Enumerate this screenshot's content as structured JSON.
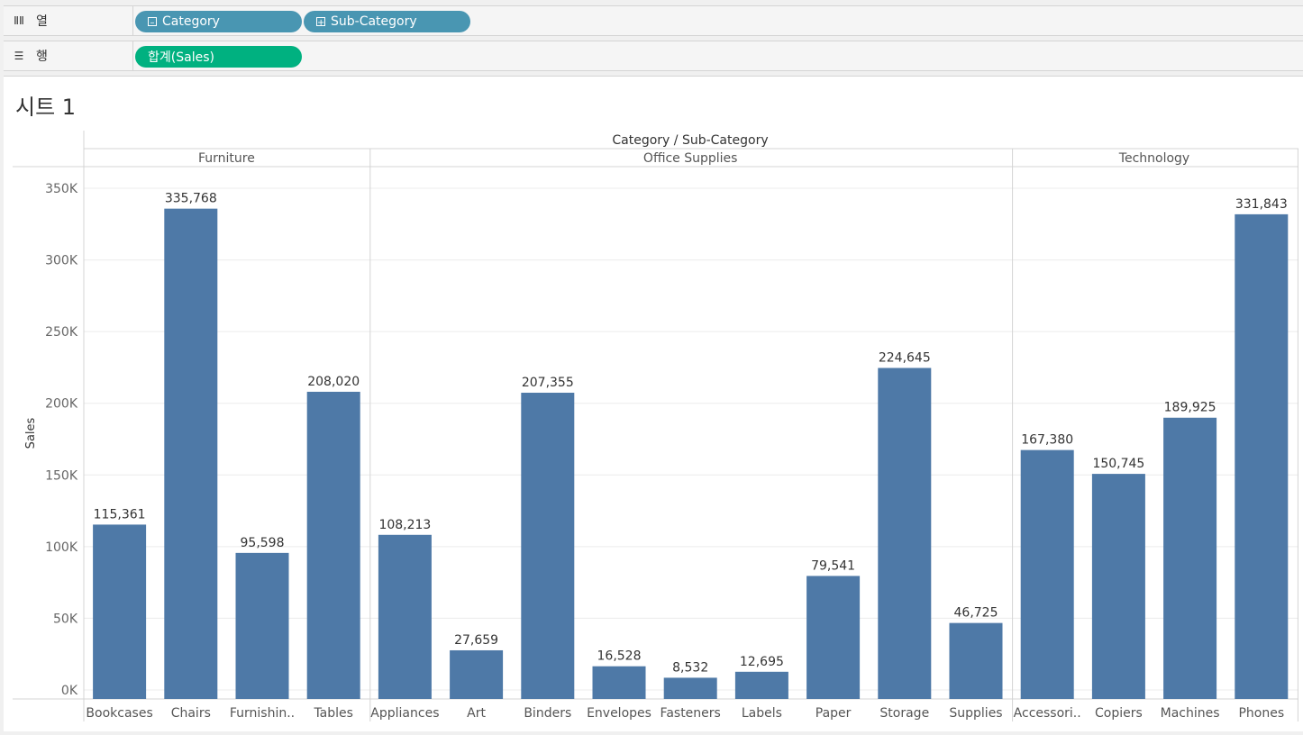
{
  "columns_shelf": {
    "label": "열",
    "icon": "columns-icon",
    "pills": [
      {
        "label": "Category",
        "glyph": "minus"
      },
      {
        "label": "Sub-Category",
        "glyph": "plus"
      }
    ]
  },
  "rows_shelf": {
    "label": "행",
    "icon": "rows-icon",
    "pills": [
      {
        "label": "합계(Sales)"
      }
    ]
  },
  "sheet": {
    "title": "시트 1"
  },
  "colors": {
    "bar": "#4e79a7",
    "pill_dimension": "#4996b2",
    "pill_measure": "#00b180"
  },
  "chart_data": {
    "type": "bar",
    "header_title": "Category / Sub-Category",
    "ylabel": "Sales",
    "ylim": [
      0,
      350000
    ],
    "yticks": [
      {
        "value": 0,
        "label": "0K"
      },
      {
        "value": 50000,
        "label": "50K"
      },
      {
        "value": 100000,
        "label": "100K"
      },
      {
        "value": 150000,
        "label": "150K"
      },
      {
        "value": 200000,
        "label": "200K"
      },
      {
        "value": 250000,
        "label": "250K"
      },
      {
        "value": 300000,
        "label": "300K"
      },
      {
        "value": 350000,
        "label": "350K"
      }
    ],
    "grid": true,
    "groups": [
      {
        "name": "Furniture",
        "items": [
          {
            "label": "Bookcases",
            "value": 115361,
            "value_label": "115,361"
          },
          {
            "label": "Chairs",
            "value": 335768,
            "value_label": "335,768"
          },
          {
            "label": "Furnishin..",
            "value": 95598,
            "value_label": "95,598"
          },
          {
            "label": "Tables",
            "value": 208020,
            "value_label": "208,020"
          }
        ]
      },
      {
        "name": "Office Supplies",
        "items": [
          {
            "label": "Appliances",
            "value": 108213,
            "value_label": "108,213"
          },
          {
            "label": "Art",
            "value": 27659,
            "value_label": "27,659"
          },
          {
            "label": "Binders",
            "value": 207355,
            "value_label": "207,355"
          },
          {
            "label": "Envelopes",
            "value": 16528,
            "value_label": "16,528"
          },
          {
            "label": "Fasteners",
            "value": 8532,
            "value_label": "8,532"
          },
          {
            "label": "Labels",
            "value": 12695,
            "value_label": "12,695"
          },
          {
            "label": "Paper",
            "value": 79541,
            "value_label": "79,541"
          },
          {
            "label": "Storage",
            "value": 224645,
            "value_label": "224,645"
          },
          {
            "label": "Supplies",
            "value": 46725,
            "value_label": "46,725"
          }
        ]
      },
      {
        "name": "Technology",
        "items": [
          {
            "label": "Accessori..",
            "value": 167380,
            "value_label": "167,380"
          },
          {
            "label": "Copiers",
            "value": 150745,
            "value_label": "150,745"
          },
          {
            "label": "Machines",
            "value": 189925,
            "value_label": "189,925"
          },
          {
            "label": "Phones",
            "value": 331843,
            "value_label": "331,843"
          }
        ]
      }
    ]
  }
}
